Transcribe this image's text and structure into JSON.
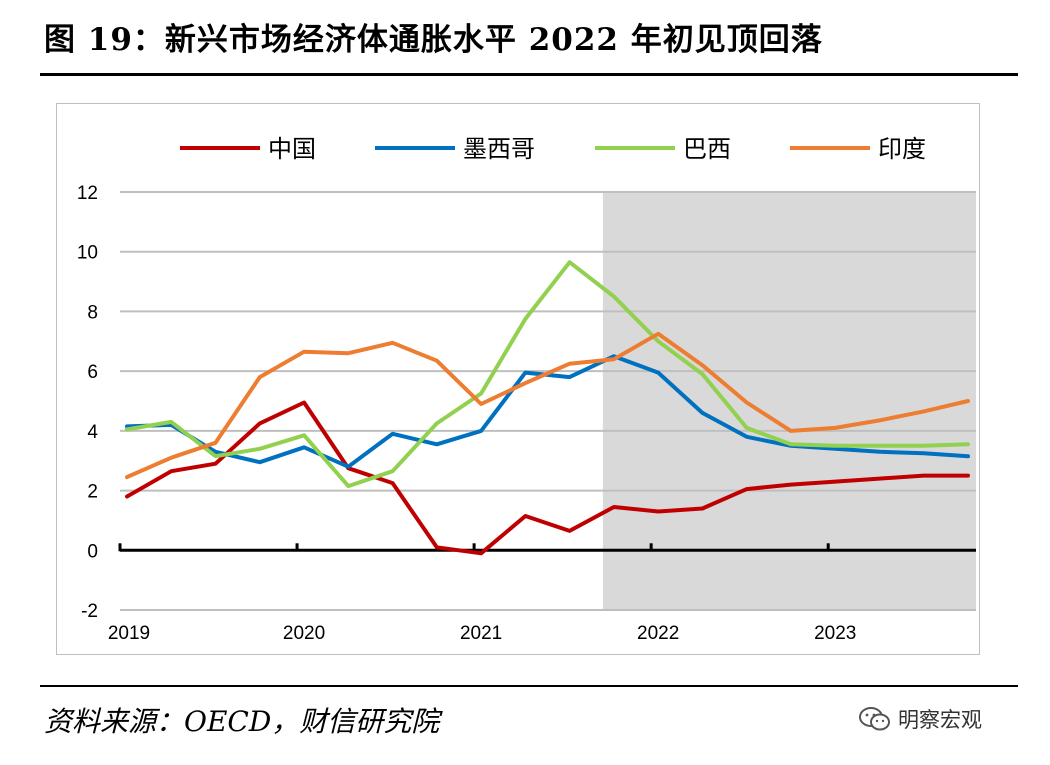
{
  "title": "图 19：新兴市场经济体通胀水平 2022 年初见顶回落",
  "source": "资料来源：OECD，财信研究院",
  "watermark": {
    "text": "明察宏观",
    "icon": "wechat-icon"
  },
  "chart_data": {
    "type": "line",
    "title": "",
    "xlabel": "",
    "ylabel": "",
    "ylim": [
      -2,
      12
    ],
    "yticks": [
      -2,
      0,
      2,
      4,
      6,
      8,
      10,
      12
    ],
    "xticks": [
      "2019",
      "2020",
      "2021",
      "2022",
      "2023"
    ],
    "legend_position": "top",
    "grid": true,
    "shaded_region": {
      "from": "2021Q4",
      "to": "2023Q4",
      "color": "#d9d9d9"
    },
    "x": [
      "2019Q1",
      "2019Q2",
      "2019Q3",
      "2019Q4",
      "2020Q1",
      "2020Q2",
      "2020Q3",
      "2020Q4",
      "2021Q1",
      "2021Q2",
      "2021Q3",
      "2021Q4",
      "2022Q1",
      "2022Q2",
      "2022Q3",
      "2022Q4",
      "2023Q1",
      "2023Q2",
      "2023Q3",
      "2023Q4"
    ],
    "series": [
      {
        "name": "中国",
        "color": "#c00000",
        "values": [
          1.8,
          2.65,
          2.9,
          4.25,
          4.95,
          2.75,
          2.25,
          0.1,
          -0.1,
          1.15,
          0.65,
          1.45,
          1.3,
          1.4,
          2.05,
          2.2,
          2.3,
          2.4,
          2.5,
          2.5
        ]
      },
      {
        "name": "墨西哥",
        "color": "#0070c0",
        "values": [
          4.15,
          4.2,
          3.3,
          2.95,
          3.45,
          2.8,
          3.9,
          3.55,
          4.0,
          5.95,
          5.8,
          6.5,
          5.95,
          4.6,
          3.8,
          3.5,
          3.4,
          3.3,
          3.25,
          3.15
        ]
      },
      {
        "name": "巴西",
        "color": "#92d050",
        "values": [
          4.05,
          4.3,
          3.15,
          3.4,
          3.85,
          2.15,
          2.65,
          4.25,
          5.25,
          7.75,
          9.65,
          8.5,
          7.0,
          5.9,
          4.1,
          3.55,
          3.5,
          3.5,
          3.5,
          3.55
        ]
      },
      {
        "name": "印度",
        "color": "#ed7d31",
        "values": [
          2.45,
          3.1,
          3.6,
          5.8,
          6.65,
          6.6,
          6.95,
          6.35,
          4.9,
          5.6,
          6.25,
          6.4,
          7.25,
          6.2,
          4.95,
          4.0,
          4.1,
          4.35,
          4.65,
          5.0
        ]
      }
    ]
  }
}
